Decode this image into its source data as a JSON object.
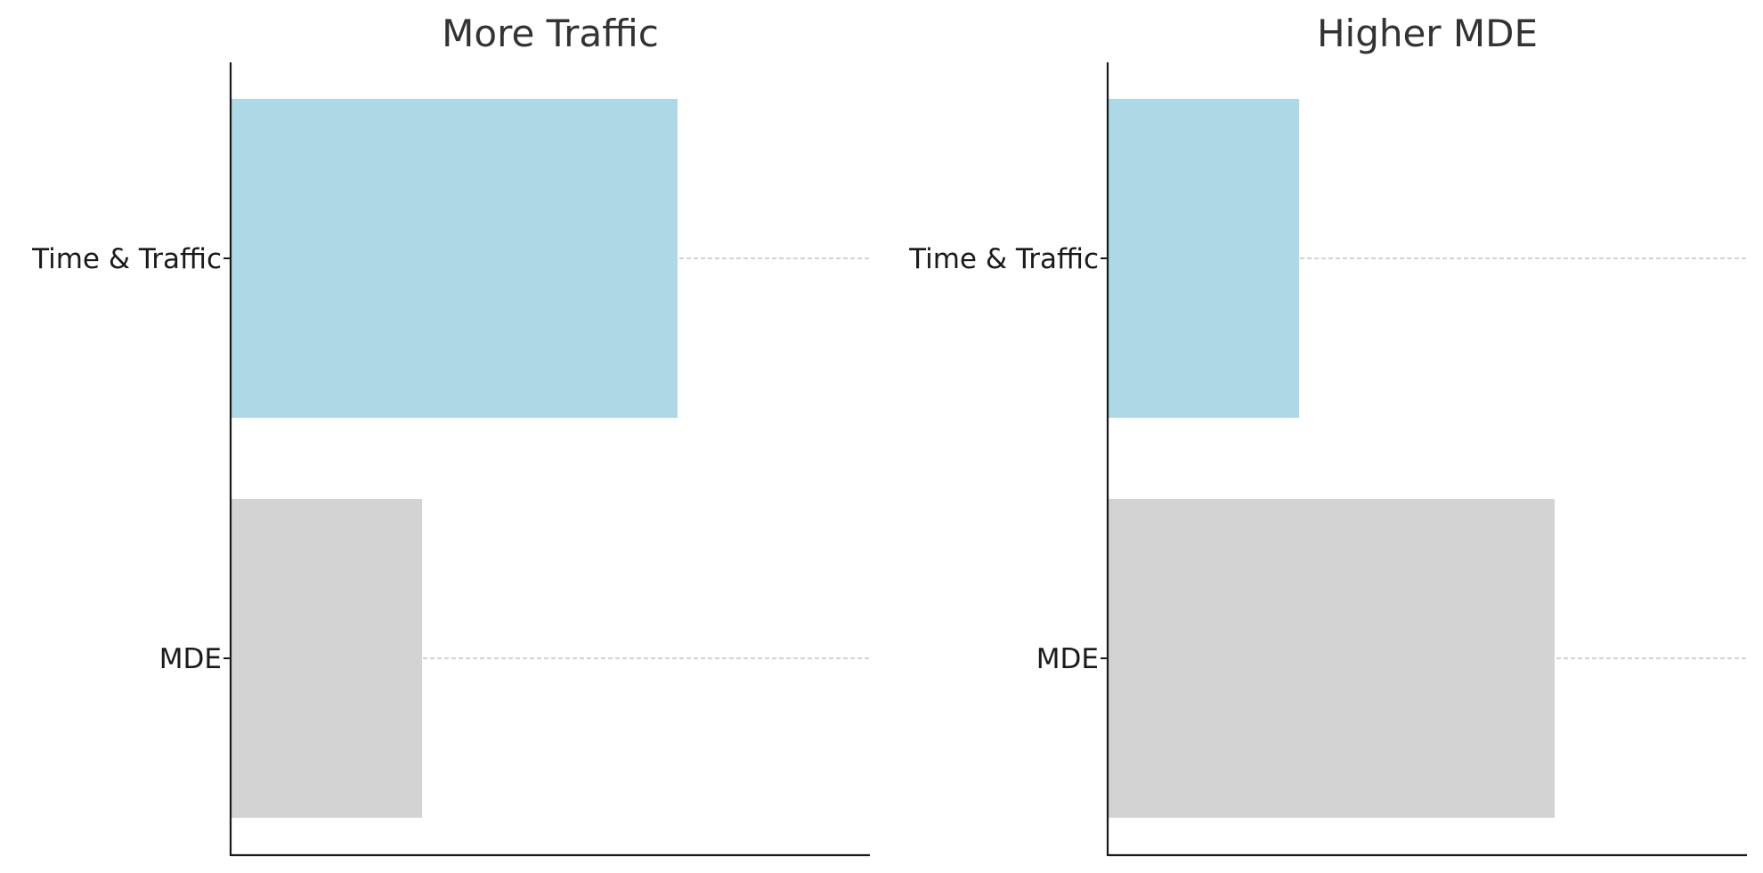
{
  "chart_data": [
    {
      "type": "bar",
      "orientation": "horizontal",
      "title": "More Traffic",
      "xlabel": "",
      "ylabel": "",
      "categories": [
        "Time & Traffic",
        "MDE"
      ],
      "values": [
        0.7,
        0.3
      ],
      "bar_colors": [
        "#ADD8E6",
        "#D3D3D3"
      ],
      "xlim": [
        0,
        1
      ],
      "grid": "horizontal-dashed",
      "x_ticks_visible": false
    },
    {
      "type": "bar",
      "orientation": "horizontal",
      "title": "Higher MDE",
      "xlabel": "",
      "ylabel": "",
      "categories": [
        "Time & Traffic",
        "MDE"
      ],
      "values": [
        0.3,
        0.7
      ],
      "bar_colors": [
        "#ADD8E6",
        "#D3D3D3"
      ],
      "xlim": [
        0,
        1
      ],
      "grid": "horizontal-dashed",
      "x_ticks_visible": false
    }
  ]
}
